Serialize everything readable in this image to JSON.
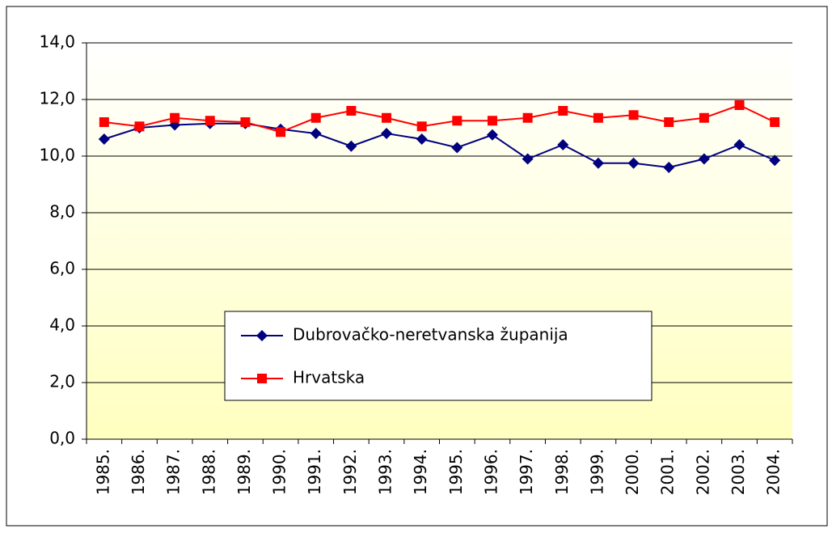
{
  "chart_data": {
    "type": "line",
    "categories": [
      "1985.",
      "1986.",
      "1987.",
      "1988.",
      "1989.",
      "1990.",
      "1991.",
      "1992.",
      "1993.",
      "1994.",
      "1995.",
      "1996.",
      "1997.",
      "1998.",
      "1999.",
      "2000.",
      "2001.",
      "2002.",
      "2003.",
      "2004."
    ],
    "series": [
      {
        "name": "Dubrovačko-neretvanska županija",
        "color": "#000080",
        "marker": "diamond",
        "values": [
          10.6,
          11.0,
          11.1,
          11.15,
          11.15,
          10.95,
          10.8,
          10.35,
          10.8,
          10.6,
          10.3,
          10.75,
          9.9,
          10.4,
          9.75,
          9.75,
          9.6,
          9.9,
          10.4,
          9.85
        ]
      },
      {
        "name": "Hrvatska",
        "color": "#ff0000",
        "marker": "square",
        "values": [
          11.2,
          11.05,
          11.35,
          11.25,
          11.2,
          10.85,
          11.35,
          11.6,
          11.35,
          11.05,
          11.25,
          11.25,
          11.35,
          11.6,
          11.35,
          11.45,
          11.2,
          11.35,
          11.8,
          11.2
        ]
      }
    ],
    "ylim": [
      0,
      14
    ],
    "yticks": [
      {
        "value": 0,
        "label": "0,0"
      },
      {
        "value": 2,
        "label": "2,0"
      },
      {
        "value": 4,
        "label": "4,0"
      },
      {
        "value": 6,
        "label": "6,0"
      },
      {
        "value": 8,
        "label": "8,0"
      },
      {
        "value": 10,
        "label": "10,0"
      },
      {
        "value": 12,
        "label": "12,0"
      },
      {
        "value": 14,
        "label": "14,0"
      }
    ],
    "grid": true
  }
}
